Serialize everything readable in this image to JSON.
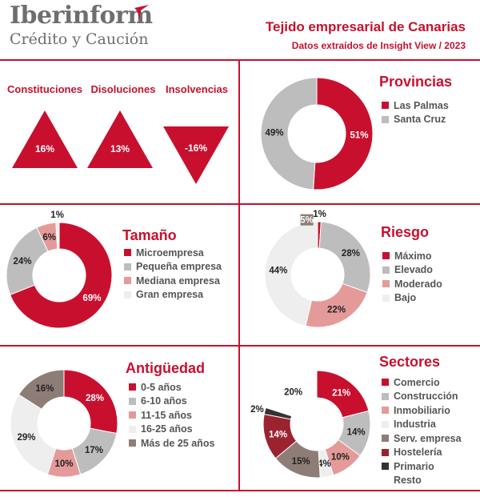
{
  "header": {
    "logo_main": "Iberinform",
    "logo_sub": "Crédito y Caución",
    "title": "Tejido empresarial de Canarias",
    "subtitle": "Datos extraídos de Insight View / 2023"
  },
  "colors": {
    "accent": "#c8102e"
  },
  "chart_data": [
    {
      "type": "bar",
      "categories": [
        "Constituciones",
        "Disoluciones",
        "Insolvencias"
      ],
      "values": [
        16,
        13,
        -16
      ],
      "value_labels": [
        "16%",
        "13%",
        "-16%"
      ]
    },
    {
      "type": "pie",
      "title": "Provincias",
      "labels": [
        "Las Palmas",
        "Santa Cruz"
      ],
      "values": [
        51,
        49
      ],
      "colors": [
        "#c8102e",
        "#bdbdbd"
      ]
    },
    {
      "type": "pie",
      "title": "Tamaño",
      "labels": [
        "Microempresa",
        "Pequeña empresa",
        "Mediana empresa",
        "Gran empresa"
      ],
      "values": [
        69,
        24,
        6,
        1
      ],
      "colors": [
        "#c8102e",
        "#bdbdbd",
        "#e59a9a",
        "#eeeeee"
      ]
    },
    {
      "type": "pie",
      "title": "Riesgo",
      "labels": [
        "Máximo",
        "Elevado",
        "Moderado",
        "Bajo"
      ],
      "values": [
        1,
        28,
        22,
        44
      ],
      "colors": [
        "#c8102e",
        "#bdbdbd",
        "#e59a9a",
        "#eeeeee"
      ],
      "extra_labels": [
        "5%"
      ]
    },
    {
      "type": "pie",
      "title": "Antigüedad",
      "labels": [
        "0-5 años",
        "6-10 años",
        "11-15 años",
        "16-25 años",
        "Más de 25 años"
      ],
      "values": [
        28,
        17,
        10,
        29,
        16
      ],
      "colors": [
        "#c8102e",
        "#bdbdbd",
        "#e59a9a",
        "#eeeeee",
        "#8e7d77"
      ]
    },
    {
      "type": "pie",
      "title": "Sectores",
      "labels": [
        "Comercio",
        "Construcción",
        "Inmobiliario",
        "Industria",
        "Serv. empresa",
        "Hostelería",
        "Primario",
        "Resto"
      ],
      "values": [
        21,
        14,
        10,
        4,
        15,
        14,
        2,
        20
      ],
      "colors": [
        "#c8102e",
        "#bdbdbd",
        "#e59a9a",
        "#eeeeee",
        "#8e7d77",
        "#9b2330",
        "#333333",
        "#ffffff"
      ]
    }
  ]
}
